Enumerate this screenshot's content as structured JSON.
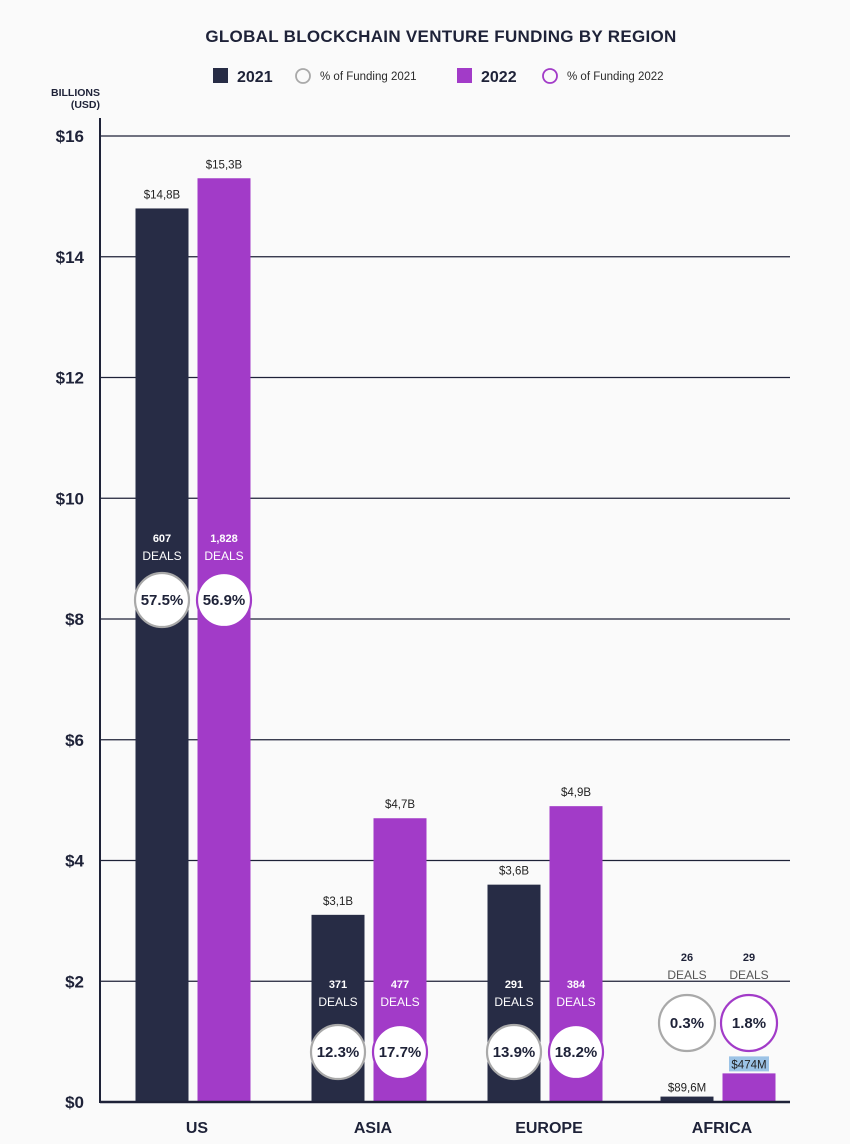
{
  "colors": {
    "s2021": "#272c45",
    "s2022": "#a23bc8",
    "ring2021": "#a9a9a9",
    "ring2022": "#a23bc8",
    "grid": "#1e2238",
    "text": "#1e2238"
  },
  "chart_data": {
    "type": "bar",
    "title": "GLOBAL BLOCKCHAIN VENTURE FUNDING BY REGION",
    "ylabel": "BILLIONS (USD)",
    "ylim": [
      0,
      16
    ],
    "yticks": [
      0,
      2,
      4,
      6,
      8,
      10,
      12,
      14,
      16
    ],
    "ytick_labels": [
      "$0",
      "$2",
      "$4",
      "$6",
      "$8",
      "$10",
      "$12",
      "$14",
      "$16"
    ],
    "grid": true,
    "legend_position": "top-center",
    "legend": [
      {
        "label": "2021",
        "kind": "swatch",
        "series": "2021"
      },
      {
        "label": "% of Funding 2021",
        "kind": "ring",
        "series": "2021"
      },
      {
        "label": "2022",
        "kind": "swatch",
        "series": "2022"
      },
      {
        "label": "% of Funding 2022",
        "kind": "ring",
        "series": "2022"
      }
    ],
    "categories": [
      "US",
      "ASIA",
      "EUROPE",
      "AFRICA"
    ],
    "series": [
      {
        "name": "2021",
        "values": [
          14.8,
          3.1,
          3.6,
          0.0896
        ],
        "value_labels": [
          "$14,8B",
          "$3,1B",
          "$3,6B",
          "$89,6M"
        ],
        "deals": [
          "607",
          "371",
          "291",
          "26"
        ],
        "deals_word": "DEALS",
        "pct_funding": [
          "57.5%",
          "12.3%",
          "13.9%",
          "0.3%"
        ]
      },
      {
        "name": "2022",
        "values": [
          15.3,
          4.7,
          4.9,
          0.474
        ],
        "value_labels": [
          "$15,3B",
          "$4,7B",
          "$4,9B",
          "$474M"
        ],
        "deals": [
          "1,828",
          "477",
          "384",
          "29"
        ],
        "deals_word": "DEALS",
        "pct_funding": [
          "56.9%",
          "17.7%",
          "18.2%",
          "1.8%"
        ]
      }
    ]
  }
}
